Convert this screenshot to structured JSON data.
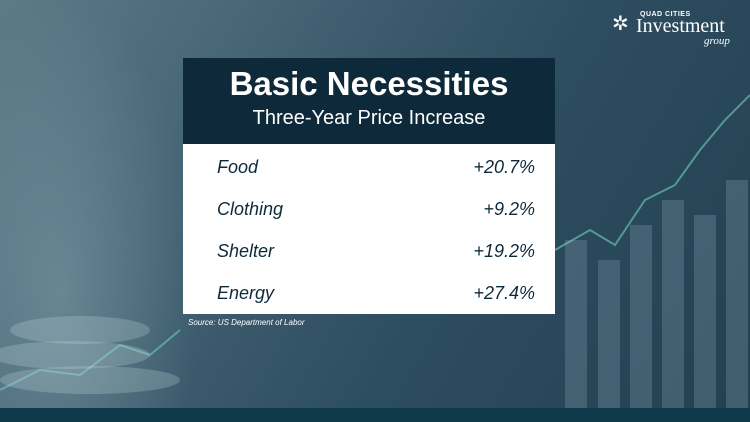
{
  "logo": {
    "top_text": "QUAD CITIES",
    "main_text": "Investment",
    "sub_text": "group",
    "icon": "star-icon"
  },
  "card": {
    "title": "Basic Necessities",
    "subtitle": "Three-Year Price Increase",
    "rows": [
      {
        "label": "Food",
        "value": "+20.7%"
      },
      {
        "label": "Clothing",
        "value": "+9.2%"
      },
      {
        "label": "Shelter",
        "value": "+19.2%"
      },
      {
        "label": "Energy",
        "value": "+27.4%"
      }
    ]
  },
  "source": "Source: US Department of Labor",
  "colors": {
    "header_bg": "#0e2a3a",
    "text_dark": "#0e2a3a",
    "footer_bar": "#0e3a4a"
  }
}
